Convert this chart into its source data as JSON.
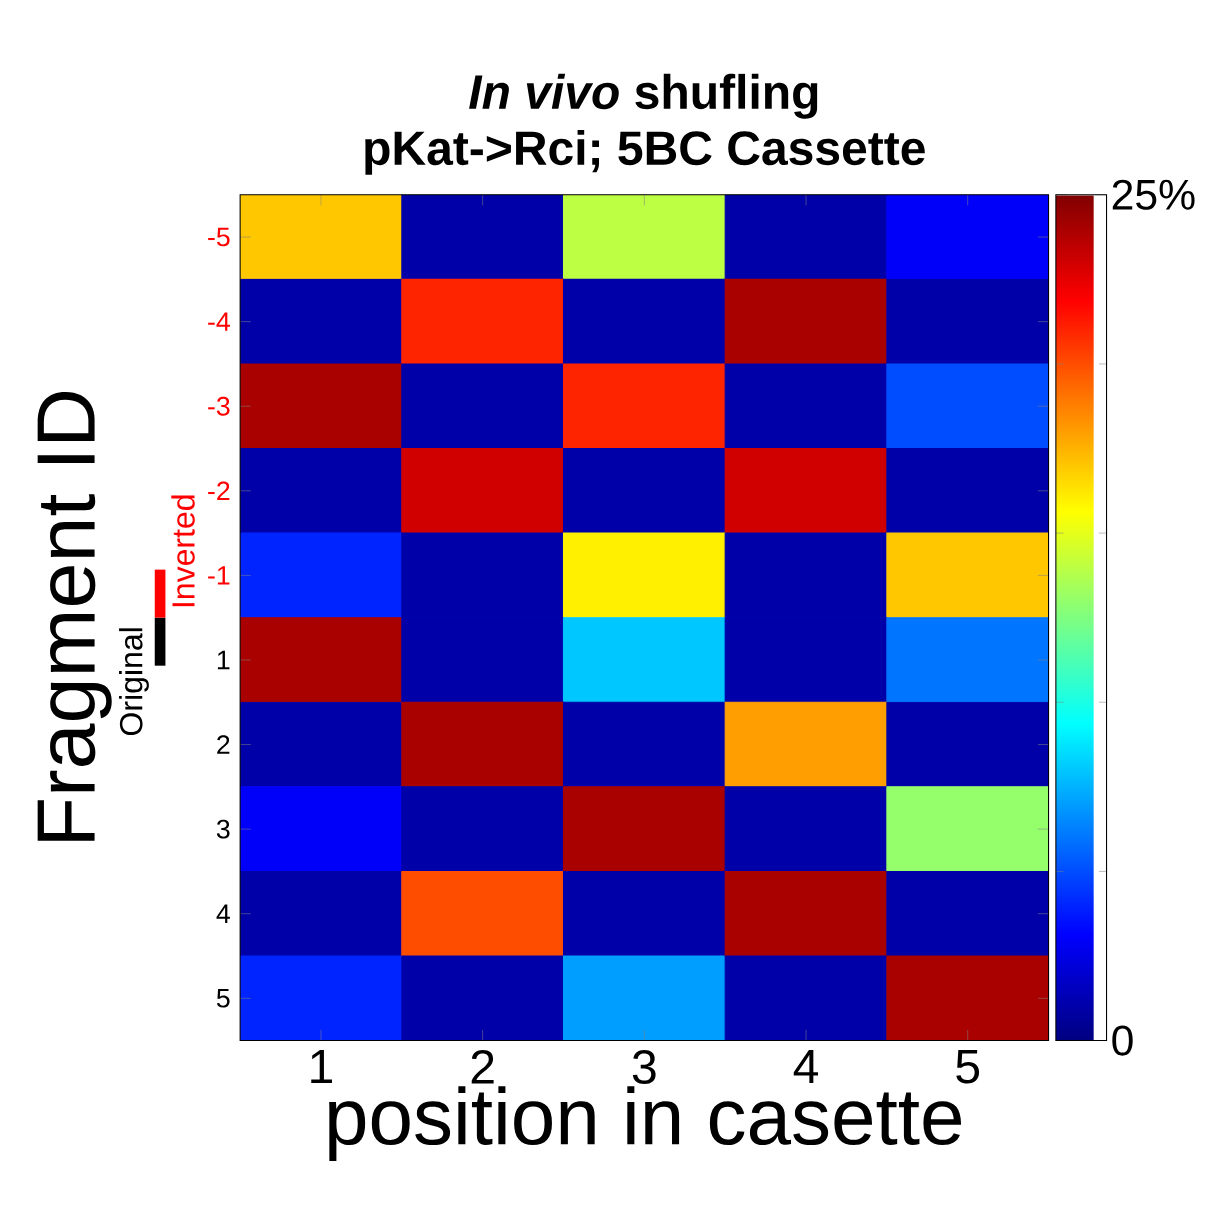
{
  "chart_data": {
    "type": "heatmap",
    "title": "*In vivo* shufling",
    "subtitle": "pKat->Rci; 5BC Cassette",
    "xlabel": "position in casette",
    "ylabel": "Fragment ID",
    "categories": [
      "1",
      "2",
      "3",
      "4",
      "5"
    ],
    "y_categories": [
      "-5",
      "-4",
      "-3",
      "-2",
      "-1",
      "1",
      "2",
      "3",
      "4",
      "5"
    ],
    "cells": [
      [
        17,
        1,
        14,
        1,
        3
      ],
      [
        1,
        21,
        1,
        24,
        1
      ],
      [
        24,
        1,
        21,
        1,
        5
      ],
      [
        1,
        23,
        1,
        23,
        1
      ],
      [
        4,
        1,
        16,
        1,
        17
      ],
      [
        24,
        1,
        8,
        1,
        6
      ],
      [
        1,
        24,
        1,
        18,
        1
      ],
      [
        3,
        1,
        24,
        1,
        13
      ],
      [
        1,
        20,
        1,
        24,
        1
      ],
      [
        4,
        1,
        7,
        1,
        24
      ]
    ],
    "clim": [
      0,
      25
    ],
    "cticks": [
      0,
      {
        "value": 25,
        "label": "25%"
      }
    ],
    "annotations": [
      "Original",
      "Inverted"
    ]
  }
}
